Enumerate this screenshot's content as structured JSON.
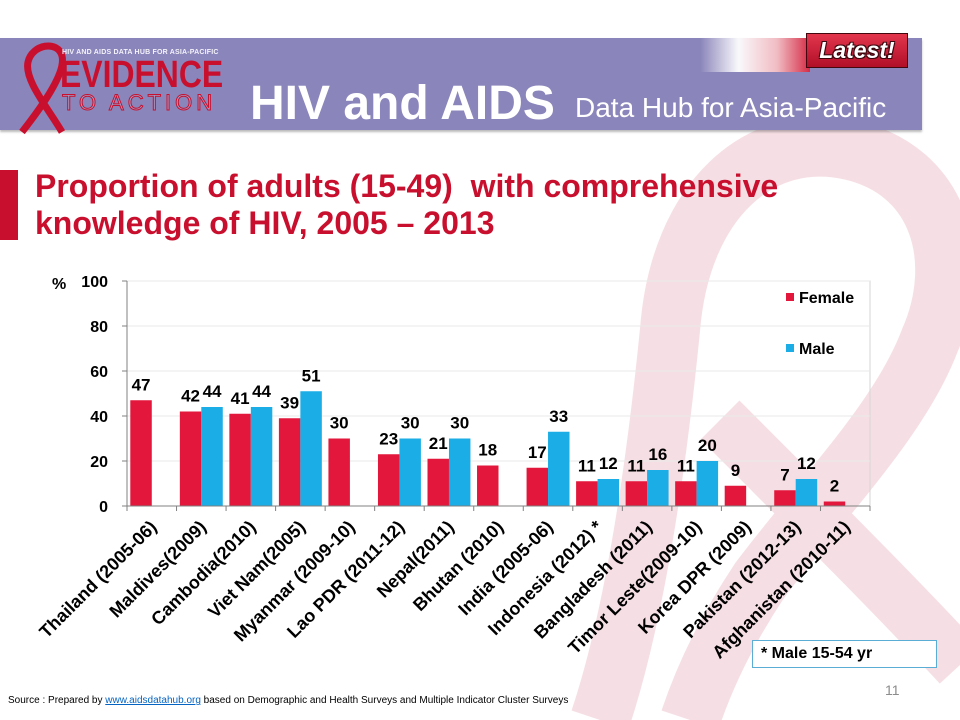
{
  "header": {
    "logo_tagline": "HIV AND AIDS DATA HUB FOR ASIA-PACIFIC",
    "logo_word1": "EVIDENCE",
    "logo_word2": "TO ACTION",
    "title": "HIV and AIDS",
    "subtitle": "Data Hub for Asia-Pacific",
    "badge": "Latest!"
  },
  "chart_data": {
    "type": "bar",
    "title_lines": [
      "Proportion of adults (15-49)  with comprehensive",
      "knowledge of HIV, 2005 – 2013"
    ],
    "ylabel": "%",
    "ylim": [
      0,
      100
    ],
    "yticks": [
      0,
      20,
      40,
      60,
      80,
      100
    ],
    "grid": true,
    "legend_position": "top-right",
    "categories": [
      "Thailand (2005-06)",
      "Maldives(2009)",
      "Cambodia(2010)",
      "Viet Nam(2005)",
      "Myanmar (2009-10)",
      "Lao PDR (2011-12)",
      "Nepal(2011)",
      "Bhutan (2010)",
      "India (2005-06)",
      "Indonesia (2012) *",
      "Bangladesh (2011)",
      "Timor Leste(2009-10)",
      "Korea DPR (2009)",
      "Pakistan (2012-13)",
      "Afghanistan (2010-11)"
    ],
    "series": [
      {
        "name": "Female",
        "color": "#e2173b",
        "values": [
          47,
          42,
          41,
          39,
          30,
          23,
          21,
          18,
          17,
          11,
          11,
          11,
          9,
          7,
          2
        ]
      },
      {
        "name": "Male",
        "color": "#1aade6",
        "values": [
          null,
          44,
          44,
          51,
          null,
          30,
          30,
          null,
          33,
          12,
          16,
          20,
          null,
          12,
          null
        ]
      }
    ]
  },
  "footnote": "* Male 15-54 yr",
  "source": {
    "prefix": "Source : Prepared by ",
    "link": "www.aidsdatahub.org",
    "suffix": " based on Demographic and Health Surveys and Multiple Indicator Cluster Surveys"
  },
  "page_number": "11",
  "colors": {
    "band": "#8a85ba",
    "accent": "#c8102e",
    "watermark": "#f6dfe4"
  },
  "icons": {
    "logo": "red-ribbon-icon",
    "watermark": "ribbon-watermark-icon"
  }
}
